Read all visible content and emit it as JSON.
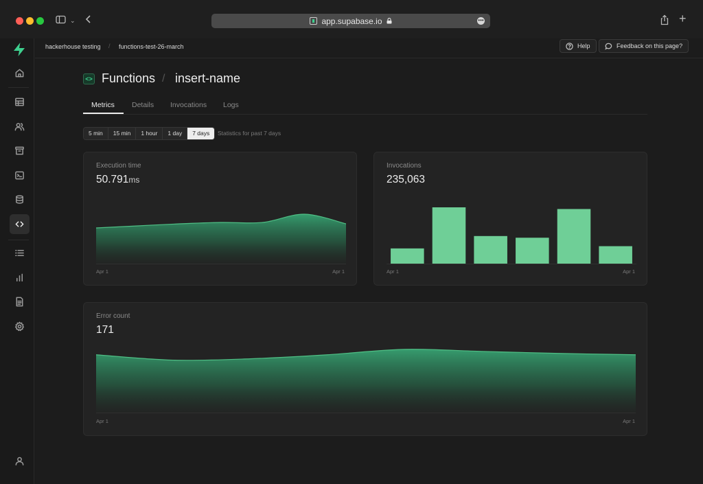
{
  "browser": {
    "url": "app.supabase.io"
  },
  "breadcrumb": {
    "org": "hackerhouse testing",
    "project": "functions-test-26-march"
  },
  "topbar": {
    "help_label": "Help",
    "feedback_label": "Feedback on this page?"
  },
  "header": {
    "section": "Functions",
    "function_name": "insert-name"
  },
  "tabs": [
    {
      "label": "Metrics",
      "active": true
    },
    {
      "label": "Details"
    },
    {
      "label": "Invocations"
    },
    {
      "label": "Logs"
    }
  ],
  "range": {
    "options": [
      "5 min",
      "15 min",
      "1 hour",
      "1 day",
      "7 days"
    ],
    "selected": "7 days",
    "note": "Statistics for past 7 days"
  },
  "sidebar": {
    "items": [
      "home-icon",
      "table-icon",
      "users-icon",
      "archive-icon",
      "terminal-icon",
      "database-icon",
      "code-icon",
      "list-icon",
      "bar-chart-icon",
      "document-icon",
      "gear-icon",
      "user-icon"
    ],
    "active": "code-icon"
  },
  "colors": {
    "accent": "#3ecf8e",
    "bar": "#6fcf97",
    "background": "#1c1c1c",
    "card": "#232323"
  },
  "cards": {
    "execution": {
      "label": "Execution time",
      "value": "50.791",
      "unit": "ms",
      "tick_start": "Apr 1",
      "tick_end": "Apr 1"
    },
    "invocations": {
      "label": "Invocations",
      "value": "235,063",
      "tick_start": "Apr 1",
      "tick_end": "Apr 1"
    },
    "errors": {
      "label": "Error count",
      "value": "171",
      "tick_start": "Apr 1",
      "tick_end": "Apr 1"
    }
  },
  "chart_data": [
    {
      "type": "area",
      "series": [
        {
          "values": [
            52,
            55,
            58,
            60,
            60,
            72,
            58
          ]
        }
      ],
      "ylim": [
        0,
        100
      ]
    },
    {
      "type": "bar",
      "series": [
        {
          "values": [
            27,
            100,
            49,
            46,
            97,
            31
          ]
        }
      ],
      "ylim": [
        0,
        100
      ]
    },
    {
      "type": "area",
      "series": [
        {
          "values": [
            86,
            78,
            80,
            86,
            94,
            91,
            88,
            86
          ]
        }
      ],
      "ylim": [
        0,
        100
      ]
    }
  ]
}
